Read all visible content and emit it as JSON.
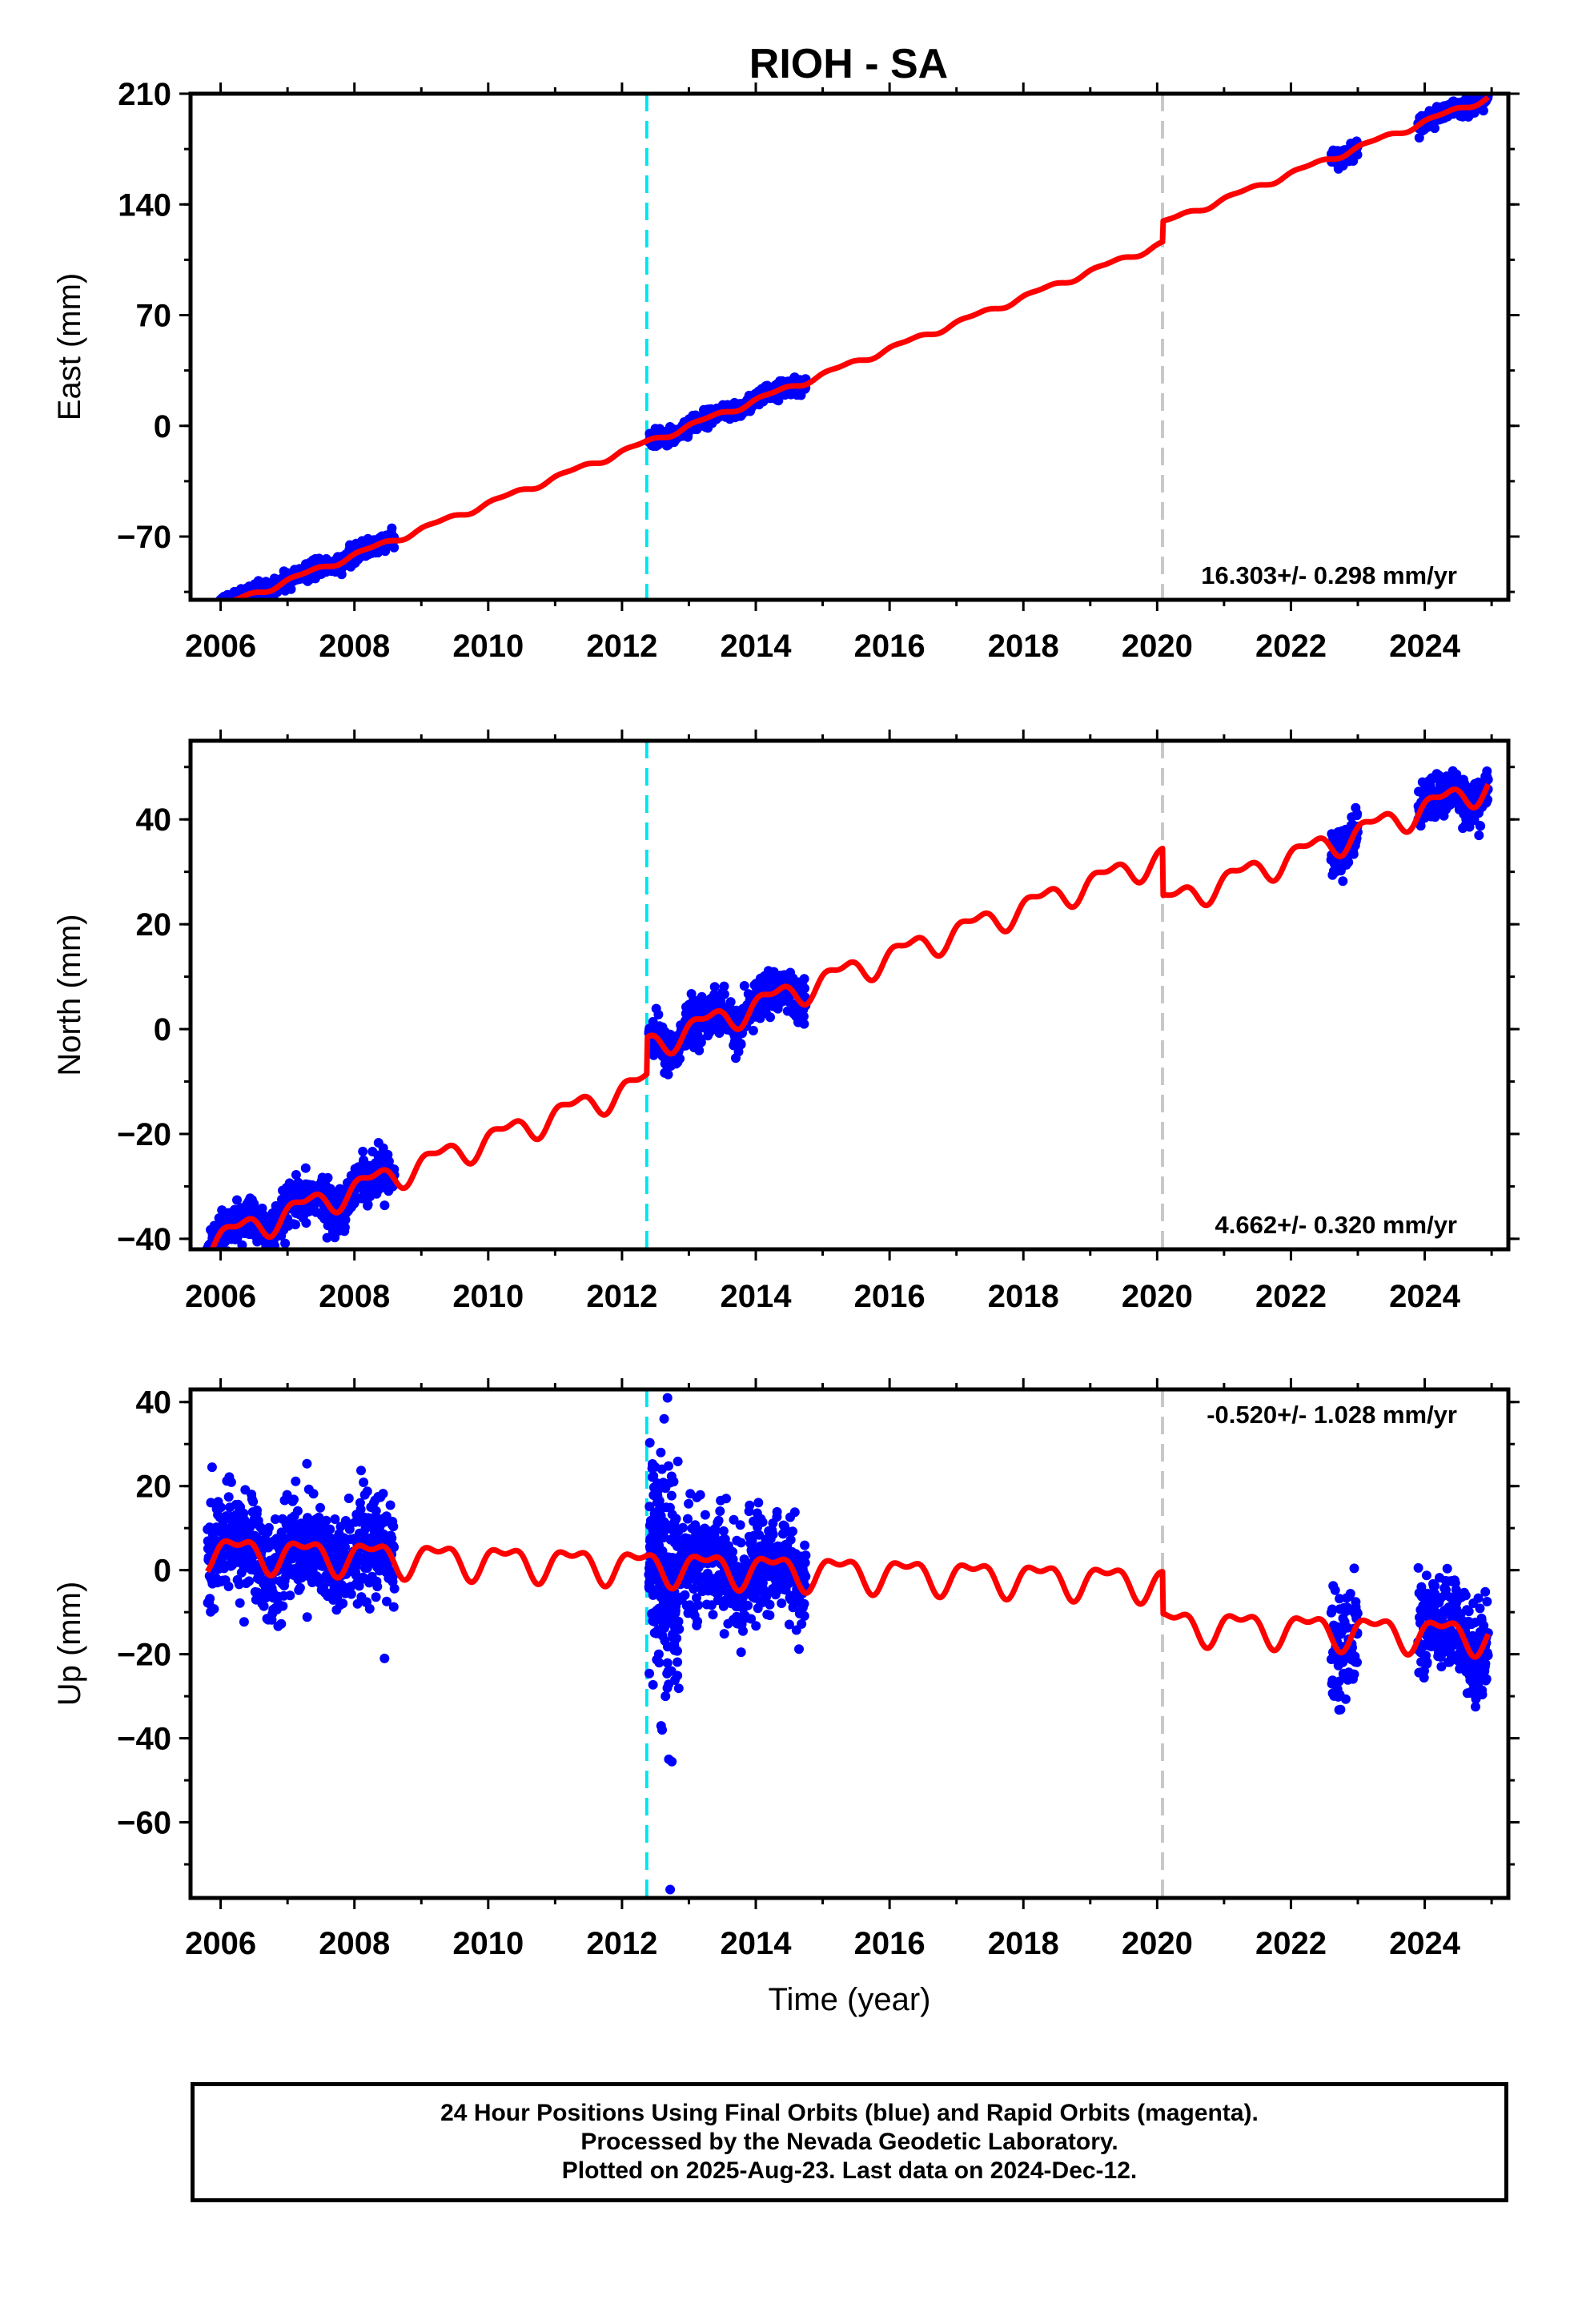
{
  "title": "RIOH - SA",
  "x_tick_labels": [
    "2006",
    "2008",
    "2010",
    "2012",
    "2014",
    "2016",
    "2018",
    "2020",
    "2022",
    "2024"
  ],
  "x_axis_label": "Time (year)",
  "colors": {
    "data_points": "#0000ff",
    "model_line": "#ff0000",
    "antenna_change_line": "#00e5ee",
    "equipment_change_line": "#c8c8c8"
  },
  "chart_data": [
    {
      "type": "scatter",
      "panel": "east",
      "ylabel": "East (mm)",
      "xlim": [
        2005.55,
        2025.25
      ],
      "ylim": [
        -110,
        210
      ],
      "yticks": [
        -70,
        0,
        70,
        140,
        210
      ],
      "rate_label": "16.303+/- 0.298 mm/yr",
      "vertical_lines": [
        {
          "x": 2012.37,
          "style": "dashed",
          "color": "cyan"
        },
        {
          "x": 2020.08,
          "style": "dashed",
          "color": "gray"
        }
      ],
      "data_segments": [
        [
          2005.8,
          2008.6
        ],
        [
          2012.4,
          2014.75
        ],
        [
          2022.6,
          2023.0
        ],
        [
          2023.9,
          2024.95
        ]
      ],
      "model": {
        "slope": 16.303,
        "x0": 2012.4,
        "y0": -10,
        "offsets": [
          {
            "x": 2020.08,
            "dy": 13
          }
        ],
        "seasonal_amp": 1.5
      },
      "scatter_noise": 2.5
    },
    {
      "type": "scatter",
      "panel": "north",
      "ylabel": "North (mm)",
      "xlim": [
        2005.55,
        2025.25
      ],
      "ylim": [
        -42,
        55
      ],
      "yticks": [
        -40,
        -20,
        0,
        20,
        40
      ],
      "rate_label": "4.662+/- 0.320 mm/yr",
      "vertical_lines": [
        {
          "x": 2012.37,
          "style": "dashed",
          "color": "cyan"
        },
        {
          "x": 2020.08,
          "style": "dashed",
          "color": "gray"
        }
      ],
      "data_segments": [
        [
          2005.8,
          2008.6
        ],
        [
          2012.4,
          2014.75
        ],
        [
          2022.6,
          2023.0
        ],
        [
          2023.9,
          2024.95
        ]
      ],
      "model": {
        "slope": 4.662,
        "x0": 2012.4,
        "y0": -3,
        "offsets": [
          {
            "x": 2012.37,
            "dy": 7
          },
          {
            "x": 2020.08,
            "dy": -9
          }
        ],
        "seasonal_amp": 2.2
      },
      "scatter_noise": 2.0
    },
    {
      "type": "scatter",
      "panel": "up",
      "ylabel": "Up (mm)",
      "xlim": [
        2005.55,
        2025.25
      ],
      "ylim": [
        -78,
        43
      ],
      "yticks": [
        -60,
        -40,
        -20,
        0,
        20,
        40
      ],
      "rate_label": "-0.520+/- 1.028 mm/yr",
      "vertical_lines": [
        {
          "x": 2012.37,
          "style": "dashed",
          "color": "cyan"
        },
        {
          "x": 2020.08,
          "style": "dashed",
          "color": "gray"
        }
      ],
      "data_segments": [
        [
          2005.8,
          2008.6
        ],
        [
          2012.4,
          2014.75
        ],
        [
          2022.6,
          2023.0
        ],
        [
          2023.9,
          2024.95
        ]
      ],
      "model": {
        "slope": -0.52,
        "x0": 2012.4,
        "y0": 1,
        "offsets": [
          {
            "x": 2020.08,
            "dy": -10
          }
        ],
        "seasonal_amp": 3.5
      },
      "scatter_noise": 6.0,
      "outliers": [
        {
          "x": 2012.6,
          "y": -38
        },
        {
          "x": 2012.65,
          "y": -30
        },
        {
          "x": 2012.7,
          "y": -45
        },
        {
          "x": 2012.72,
          "y": -76
        },
        {
          "x": 2012.68,
          "y": 41
        },
        {
          "x": 2012.63,
          "y": 36
        },
        {
          "x": 2012.55,
          "y": -20
        },
        {
          "x": 2008.45,
          "y": -21
        },
        {
          "x": 2012.58,
          "y": 28
        }
      ]
    }
  ],
  "footer": {
    "line1": "24 Hour Positions Using Final Orbits (blue) and Rapid Orbits (magenta).",
    "line2": "Processed by the Nevada Geodetic Laboratory.",
    "line3": "Plotted on 2025-Aug-23. Last data on 2024-Dec-12."
  }
}
